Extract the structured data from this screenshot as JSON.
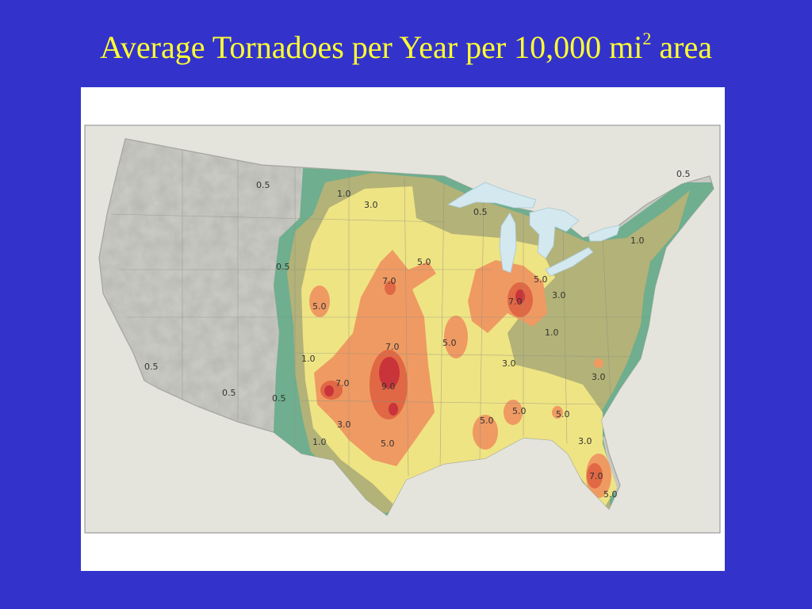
{
  "title": {
    "main": "Average Tornadoes per Year per 10,000 mi",
    "superscript": "2",
    "suffix": " area"
  },
  "colors": {
    "background": "#3333cc",
    "title": "#ffff33",
    "land": "#c9c9c3",
    "water": "#d3e8ef",
    "band_0_5": "#6fae8e",
    "band_1_0": "#b3b278",
    "band_3_0": "#efe483",
    "band_5_0": "#ef9a62",
    "band_7_0": "#e06844",
    "band_9_0": "#c9333a"
  },
  "map": {
    "contour_labels": [
      {
        "text": "0.5"
      },
      {
        "text": "1.0"
      },
      {
        "text": "3.0"
      },
      {
        "text": "0.5"
      },
      {
        "text": "0.5"
      },
      {
        "text": "1.0"
      },
      {
        "text": "0.5"
      },
      {
        "text": "5.0"
      },
      {
        "text": "7.0"
      },
      {
        "text": "5.0"
      },
      {
        "text": "5.0"
      },
      {
        "text": "7.0"
      },
      {
        "text": "3.0"
      },
      {
        "text": "1.0"
      },
      {
        "text": "7.0"
      },
      {
        "text": "5.0"
      },
      {
        "text": "1.0"
      },
      {
        "text": "3.0"
      },
      {
        "text": "0.5"
      },
      {
        "text": "0.5"
      },
      {
        "text": "0.5"
      },
      {
        "text": "7.0"
      },
      {
        "text": "9.0"
      },
      {
        "text": "3.0"
      },
      {
        "text": "5.0"
      },
      {
        "text": "5.0"
      },
      {
        "text": "5.0"
      },
      {
        "text": "3.0"
      },
      {
        "text": "1.0"
      },
      {
        "text": "3.0"
      },
      {
        "text": "5.0"
      },
      {
        "text": "7.0"
      },
      {
        "text": "5.0"
      }
    ]
  }
}
